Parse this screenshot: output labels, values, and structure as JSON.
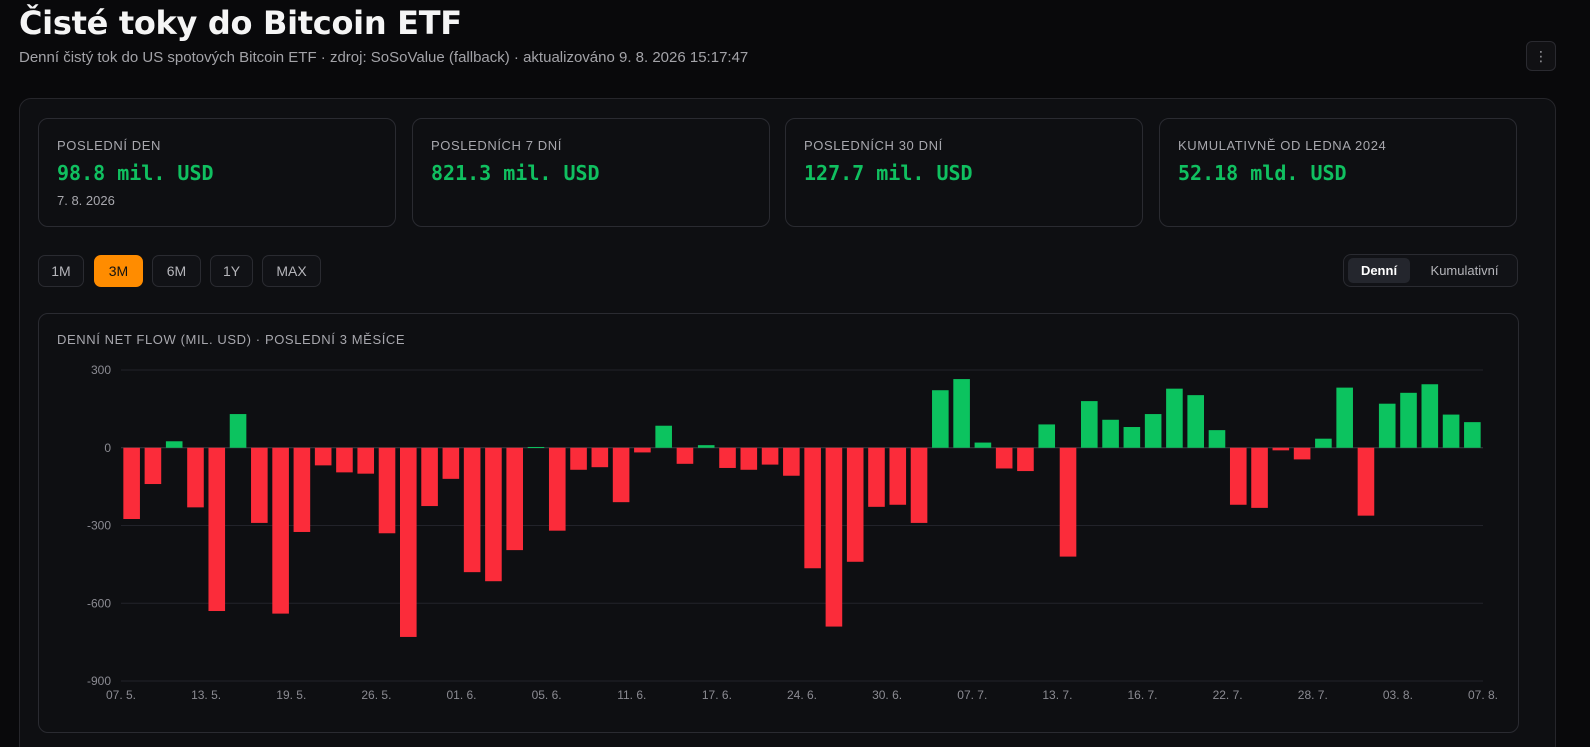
{
  "header": {
    "title": "Čisté toky do Bitcoin ETF",
    "subtitle": "Denní čistý tok do US spotových Bitcoin ETF · zdroj: SoSoValue (fallback) · aktualizováno 9. 8. 2026 15:17:47",
    "menu_icon": "⋮"
  },
  "stats": [
    {
      "label": "POSLEDNÍ DEN",
      "value": "98.8 mil. USD",
      "sub": "7. 8. 2026"
    },
    {
      "label": "POSLEDNÍCH 7 DNÍ",
      "value": "821.3 mil. USD",
      "sub": ""
    },
    {
      "label": "POSLEDNÍCH 30 DNÍ",
      "value": "127.7 mil. USD",
      "sub": ""
    },
    {
      "label": "KUMULATIVNĚ OD LEDNA 2024",
      "value": "52.18 mld. USD",
      "sub": ""
    }
  ],
  "ranges": [
    "1M",
    "3M",
    "6M",
    "1Y",
    "MAX"
  ],
  "active_range": "3M",
  "view_toggle": {
    "options": [
      "Denní",
      "Kumulativní"
    ],
    "selected": "Denní"
  },
  "colors": {
    "positive": "#0cc35f",
    "negative": "#fb2c3a",
    "accent": "#ff8c00"
  },
  "chart_data": {
    "type": "bar",
    "title": "DENNÍ NET FLOW (MIL. USD) · POSLEDNÍ 3 MĚSÍCE",
    "ylim": [
      -900,
      300
    ],
    "yticks": [
      300,
      0,
      -300,
      -600,
      -900
    ],
    "xtick_labels": [
      "07. 5.",
      "13. 5.",
      "19. 5.",
      "26. 5.",
      "01. 6.",
      "05. 6.",
      "11. 6.",
      "17. 6.",
      "24. 6.",
      "30. 6.",
      "07. 7.",
      "13. 7.",
      "16. 7.",
      "22. 7.",
      "28. 7.",
      "03. 8.",
      "07. 8."
    ],
    "grid": true,
    "legend": "none",
    "values": [
      -275,
      -140,
      25,
      -230,
      -630,
      130,
      -290,
      -640,
      -325,
      -68,
      -95,
      -100,
      -330,
      -730,
      -225,
      -120,
      -480,
      -515,
      -395,
      3,
      -320,
      -85,
      -75,
      -210,
      -18,
      85,
      -62,
      10,
      -78,
      -85,
      -65,
      -108,
      -465,
      -690,
      -440,
      -228,
      -220,
      -290,
      222,
      265,
      20,
      -80,
      -90,
      90,
      -420,
      180,
      108,
      80,
      130,
      228,
      203,
      68,
      -220,
      -232,
      -10,
      -45,
      35,
      232,
      -262,
      170,
      212,
      245,
      128,
      98.8
    ]
  }
}
